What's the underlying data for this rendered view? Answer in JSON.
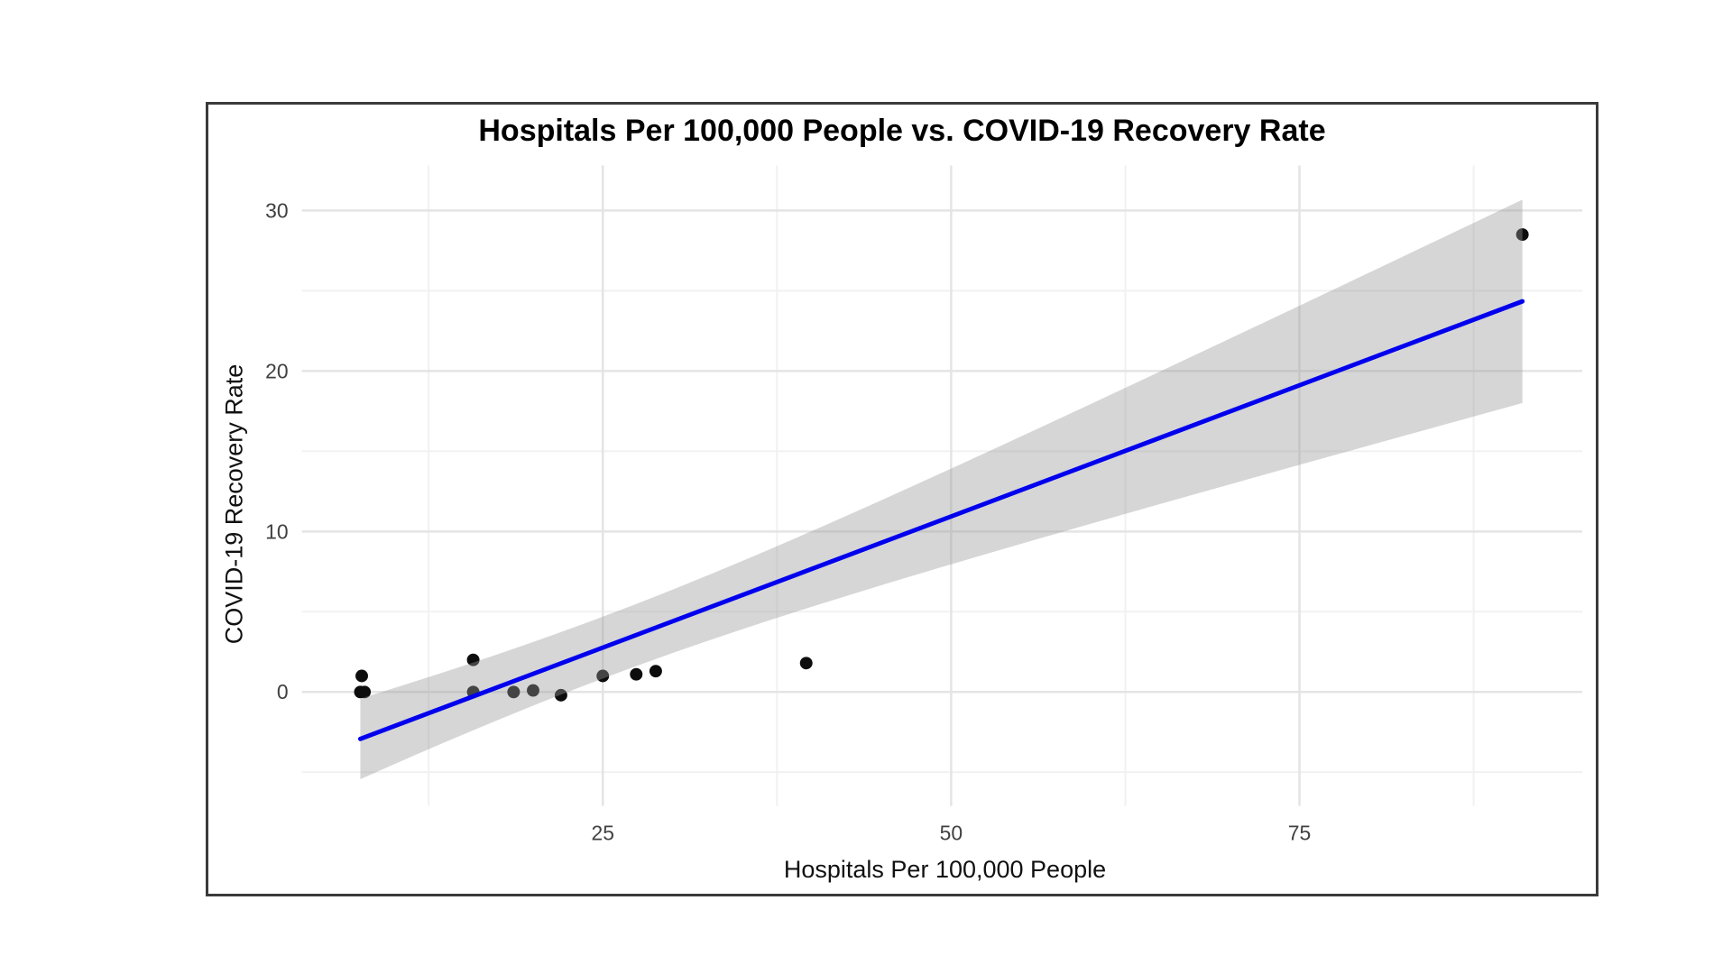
{
  "chart": {
    "title": "Hospitals Per 100,000 People vs. COVID-19 Recovery Rate",
    "xlabel": "Hospitals Per 100,000 People",
    "ylabel": "COVID-19 Recovery Rate"
  },
  "chart_data": {
    "type": "scatter",
    "title": "Hospitals Per 100,000 People vs. COVID-19 Recovery Rate",
    "xlabel": "Hospitals Per 100,000 People",
    "ylabel": "COVID-19 Recovery Rate",
    "points": [
      [
        7.6,
        0
      ],
      [
        7.9,
        0
      ],
      [
        7.7,
        1
      ],
      [
        15.7,
        2
      ],
      [
        15.7,
        0
      ],
      [
        18.6,
        0
      ],
      [
        20,
        0.1
      ],
      [
        22,
        -0.2
      ],
      [
        25,
        1
      ],
      [
        27.4,
        1.1
      ],
      [
        28.8,
        1.3
      ],
      [
        39.6,
        1.8
      ],
      [
        91,
        28.5
      ]
    ],
    "fit": {
      "method": "linear-regression",
      "ci_level": 0.95,
      "slope_approx": 0.33,
      "intercept_approx": -5.5
    },
    "x_ticks": [
      25,
      50,
      75
    ],
    "y_ticks": [
      0,
      10,
      20,
      30
    ],
    "x_minor_ticks": [
      12.5,
      37.5,
      62.5,
      87.5
    ],
    "y_minor_ticks": [
      -5,
      5,
      15,
      25
    ],
    "xlim": [
      3.4,
      95.3
    ],
    "ylim": [
      -7.1,
      32.8
    ],
    "grid": true,
    "legend": "none",
    "colors": {
      "point": "#0d0d0d",
      "regression_line": "#0000ee",
      "confidence_band": "#999999",
      "confidence_band_opacity": 0.4,
      "grid_major": "#e4e4e4",
      "grid_minor": "#f1f1f1",
      "tick_text": "#404040",
      "frame_border": "#3a3a3a",
      "background": "#ffffff"
    }
  }
}
